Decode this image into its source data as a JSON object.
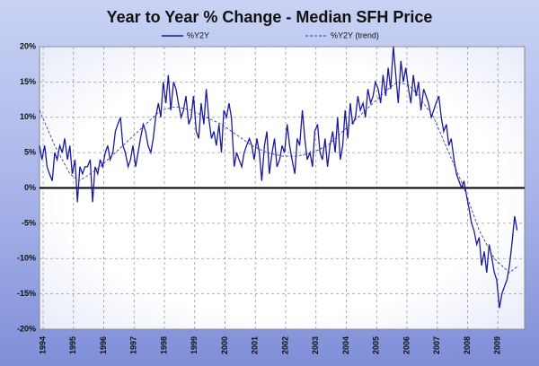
{
  "chart_data": {
    "type": "line",
    "title": "Year to Year % Change - Median SFH Price",
    "xlim": [
      1994,
      2010
    ],
    "xticks": [
      1994,
      1995,
      1996,
      1997,
      1998,
      1999,
      2000,
      2001,
      2002,
      2003,
      2004,
      2005,
      2006,
      2007,
      2008,
      2009
    ],
    "ylim": [
      -20,
      20
    ],
    "yticks": [
      {
        "value": -20,
        "label": "-20%"
      },
      {
        "value": -15,
        "label": "-15%"
      },
      {
        "value": -10,
        "label": "-10%"
      },
      {
        "value": -5,
        "label": "-5%"
      },
      {
        "value": 0,
        "label": "0%"
      },
      {
        "value": 5,
        "label": "5%"
      },
      {
        "value": 10,
        "label": "10%"
      },
      {
        "value": 15,
        "label": "15%"
      },
      {
        "value": 20,
        "label": "20%"
      }
    ],
    "grid": true,
    "legend": "top",
    "series": [
      {
        "name": "%Y2Y",
        "color": "#1a1a9c",
        "style": "solid",
        "x": [
          1994,
          1994.08,
          1994.17,
          1994.25,
          1994.33,
          1994.42,
          1994.5,
          1994.58,
          1994.67,
          1994.75,
          1994.83,
          1994.92,
          1995,
          1995.08,
          1995.17,
          1995.25,
          1995.33,
          1995.42,
          1995.5,
          1995.58,
          1995.67,
          1995.75,
          1995.83,
          1995.92,
          1996,
          1996.08,
          1996.17,
          1996.25,
          1996.33,
          1996.42,
          1996.5,
          1996.58,
          1996.67,
          1996.75,
          1996.83,
          1996.92,
          1997,
          1997.08,
          1997.17,
          1997.25,
          1997.33,
          1997.42,
          1997.5,
          1997.58,
          1997.67,
          1997.75,
          1997.83,
          1997.92,
          1998,
          1998.08,
          1998.17,
          1998.25,
          1998.33,
          1998.42,
          1998.5,
          1998.58,
          1998.67,
          1998.75,
          1998.83,
          1998.92,
          1999,
          1999.08,
          1999.17,
          1999.25,
          1999.33,
          1999.42,
          1999.5,
          1999.58,
          1999.67,
          1999.75,
          1999.83,
          1999.92,
          2000,
          2000.08,
          2000.17,
          2000.25,
          2000.33,
          2000.42,
          2000.5,
          2000.58,
          2000.67,
          2000.75,
          2000.83,
          2000.92,
          2001,
          2001.08,
          2001.17,
          2001.25,
          2001.33,
          2001.42,
          2001.5,
          2001.58,
          2001.67,
          2001.75,
          2001.83,
          2001.92,
          2002,
          2002.08,
          2002.17,
          2002.25,
          2002.33,
          2002.42,
          2002.5,
          2002.58,
          2002.67,
          2002.75,
          2002.83,
          2002.92,
          2003,
          2003.08,
          2003.17,
          2003.25,
          2003.33,
          2003.42,
          2003.5,
          2003.58,
          2003.67,
          2003.75,
          2003.83,
          2003.92,
          2004,
          2004.08,
          2004.17,
          2004.25,
          2004.33,
          2004.42,
          2004.5,
          2004.58,
          2004.67,
          2004.75,
          2004.83,
          2004.92,
          2005,
          2005.08,
          2005.17,
          2005.25,
          2005.33,
          2005.42,
          2005.5,
          2005.58,
          2005.67,
          2005.75,
          2005.83,
          2005.92,
          2006,
          2006.08,
          2006.17,
          2006.25,
          2006.33,
          2006.42,
          2006.5,
          2006.58,
          2006.67,
          2006.75,
          2006.83,
          2006.92,
          2007,
          2007.08,
          2007.17,
          2007.25,
          2007.33,
          2007.42,
          2007.5,
          2007.58,
          2007.67,
          2007.75,
          2007.83,
          2007.92,
          2008,
          2008.08,
          2008.17,
          2008.25,
          2008.33,
          2008.42,
          2008.5,
          2008.58,
          2008.67,
          2008.75,
          2008.83,
          2008.92,
          2009,
          2009.08,
          2009.17,
          2009.25,
          2009.33,
          2009.42,
          2009.5,
          2009.58,
          2009.67,
          2009.75
        ],
        "values": [
          6,
          4,
          6,
          3,
          2,
          1,
          5,
          4,
          6,
          5,
          7,
          4,
          6,
          2,
          4,
          -2,
          3,
          2,
          3,
          3,
          4,
          -2,
          3,
          2,
          4,
          3,
          5,
          6,
          4,
          5,
          8,
          9,
          10,
          6,
          5,
          3,
          4,
          6,
          3,
          5,
          7,
          9,
          8,
          6,
          5,
          7,
          10,
          12,
          10,
          15,
          12,
          16,
          11,
          15,
          14,
          12,
          10,
          11,
          13,
          9,
          10,
          13,
          8,
          7,
          12,
          9,
          14,
          10,
          7,
          8,
          6,
          9,
          5,
          11,
          10,
          12,
          10,
          3,
          5,
          4,
          3,
          5,
          6,
          7,
          6,
          4,
          7,
          5,
          1,
          6,
          8,
          2,
          5,
          7,
          3,
          4,
          6,
          5,
          9,
          6,
          4,
          2,
          7,
          6,
          11,
          7,
          4,
          5,
          3,
          8,
          9,
          5,
          4,
          7,
          3,
          6,
          8,
          5,
          10,
          4,
          6,
          11,
          7,
          12,
          9,
          10,
          13,
          11,
          12,
          10,
          14,
          12,
          13,
          15,
          14,
          12,
          16,
          13,
          17,
          14,
          20,
          16,
          12,
          18,
          15,
          17,
          14,
          12,
          16,
          13,
          15,
          11,
          14,
          13,
          12,
          10,
          11,
          12,
          13,
          10,
          8,
          9,
          6,
          7,
          4,
          2,
          1,
          0,
          1,
          -1,
          -3,
          -5,
          -6,
          -8,
          -7,
          -11,
          -9,
          -12,
          -8,
          -10,
          -12,
          -13,
          -17,
          -15,
          -14,
          -13,
          -11,
          -8,
          -4,
          -6
        ]
      },
      {
        "name": "%Y2Y (trend)",
        "color": "#3a3aa8",
        "style": "dashed",
        "x": [
          1994,
          1994.5,
          1995,
          1995.3,
          1995.5,
          1996,
          1996.5,
          1997,
          1997.5,
          1998,
          1998.5,
          1999,
          1999.5,
          2000,
          2000.5,
          2001,
          2001.5,
          2002,
          2002.5,
          2003,
          2003.5,
          2004,
          2004.5,
          2005,
          2005.5,
          2005.8,
          2006.2,
          2006.5,
          2007,
          2007.5,
          2008,
          2008.5,
          2009,
          2009.5,
          2009.8
        ],
        "values": [
          11,
          6,
          2,
          1,
          1.5,
          3,
          5,
          7,
          9,
          11,
          11.5,
          11,
          10,
          9,
          7.5,
          6,
          5,
          4.5,
          4.5,
          5,
          6,
          8,
          10,
          12,
          14,
          15,
          14.5,
          13,
          10,
          5,
          0,
          -6,
          -10,
          -12,
          -11
        ]
      }
    ]
  }
}
